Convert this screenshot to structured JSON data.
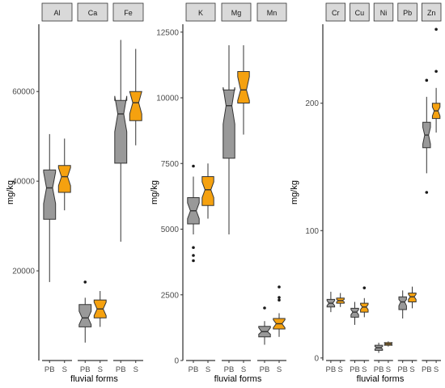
{
  "chart_data": [
    {
      "type": "box",
      "notched": true,
      "ylabel": "mg/kg",
      "xlabel": "fluvial forms",
      "ylim": [
        0,
        75000
      ],
      "yticks": [
        20000,
        40000,
        60000
      ],
      "facets": [
        "Al",
        "Ca",
        "Fe"
      ],
      "groups": [
        "PB",
        "S"
      ],
      "colors": {
        "PB": "#999999",
        "S": "#f5a10f"
      },
      "boxes": [
        {
          "facet": "Al",
          "group": "PB",
          "min": 17500,
          "q1": 31500,
          "median": 38500,
          "q3": 42500,
          "max": 50500,
          "notch": [
            35000,
            42000
          ],
          "outliers": []
        },
        {
          "facet": "Al",
          "group": "S",
          "min": 33500,
          "q1": 37500,
          "median": 41000,
          "q3": 43500,
          "max": 49500,
          "notch": [
            39000,
            43000
          ],
          "outliers": []
        },
        {
          "facet": "Ca",
          "group": "PB",
          "min": 4000,
          "q1": 7500,
          "median": 9500,
          "q3": 12500,
          "max": 14000,
          "notch": [
            8000,
            11000
          ],
          "outliers": [
            17500
          ]
        },
        {
          "facet": "Ca",
          "group": "S",
          "min": 7500,
          "q1": 9500,
          "median": 11500,
          "q3": 13500,
          "max": 15500,
          "notch": [
            10000,
            13000
          ],
          "outliers": []
        },
        {
          "facet": "Fe",
          "group": "PB",
          "min": 26500,
          "q1": 44000,
          "median": 55000,
          "q3": 58000,
          "max": 71500,
          "notch": [
            51000,
            59000
          ],
          "outliers": []
        },
        {
          "facet": "Fe",
          "group": "S",
          "min": 48000,
          "q1": 53500,
          "median": 57500,
          "q3": 60000,
          "max": 69500,
          "notch": [
            55000,
            60000
          ],
          "outliers": []
        }
      ]
    },
    {
      "type": "box",
      "notched": true,
      "ylabel": "mg/kg",
      "xlabel": "fluvial forms",
      "ylim": [
        0,
        12800
      ],
      "yticks": [
        0,
        2500,
        5000,
        7500,
        10000,
        12500
      ],
      "facets": [
        "K",
        "Mg",
        "Mn"
      ],
      "groups": [
        "PB",
        "S"
      ],
      "colors": {
        "PB": "#999999",
        "S": "#f5a10f"
      },
      "boxes": [
        {
          "facet": "K",
          "group": "PB",
          "min": 4800,
          "q1": 5200,
          "median": 5700,
          "q3": 6200,
          "max": 7000,
          "notch": [
            5400,
            6000
          ],
          "outliers": [
            7400,
            4300,
            4000,
            3800
          ]
        },
        {
          "facet": "K",
          "group": "S",
          "min": 5400,
          "q1": 5900,
          "median": 6500,
          "q3": 7000,
          "max": 7500,
          "notch": [
            6200,
            6800
          ],
          "outliers": []
        },
        {
          "facet": "Mg",
          "group": "PB",
          "min": 4800,
          "q1": 7700,
          "median": 9700,
          "q3": 10300,
          "max": 12000,
          "notch": [
            9000,
            10400
          ],
          "outliers": []
        },
        {
          "facet": "Mg",
          "group": "S",
          "min": 8600,
          "q1": 9800,
          "median": 10300,
          "q3": 11000,
          "max": 12000,
          "notch": [
            9900,
            10800
          ],
          "outliers": []
        },
        {
          "facet": "Mn",
          "group": "PB",
          "min": 600,
          "q1": 900,
          "median": 1100,
          "q3": 1300,
          "max": 1500,
          "notch": [
            1000,
            1250
          ],
          "outliers": [
            2000
          ]
        },
        {
          "facet": "Mn",
          "group": "S",
          "min": 900,
          "q1": 1200,
          "median": 1400,
          "q3": 1600,
          "max": 1800,
          "notch": [
            1250,
            1550
          ],
          "outliers": [
            2300,
            2400,
            2800
          ]
        }
      ]
    },
    {
      "type": "box",
      "notched": true,
      "ylabel": "mg/kg",
      "xlabel": "fluvial forms",
      "ylim": [
        -2,
        262
      ],
      "yticks": [
        0,
        100,
        200
      ],
      "facets": [
        "Cr",
        "Cu",
        "Ni",
        "Pb",
        "Zn"
      ],
      "groups": [
        "PB",
        "S"
      ],
      "colors": {
        "PB": "#999999",
        "S": "#f5a10f"
      },
      "boxes": [
        {
          "facet": "Cr",
          "group": "PB",
          "min": 36,
          "q1": 40,
          "median": 43,
          "q3": 46,
          "max": 52,
          "notch": [
            41,
            45
          ],
          "outliers": []
        },
        {
          "facet": "Cr",
          "group": "S",
          "min": 40,
          "q1": 43,
          "median": 45,
          "q3": 47,
          "max": 51,
          "notch": [
            44,
            46
          ],
          "outliers": []
        },
        {
          "facet": "Cu",
          "group": "PB",
          "min": 26,
          "q1": 32,
          "median": 36,
          "q3": 39,
          "max": 44,
          "notch": [
            34,
            38
          ],
          "outliers": []
        },
        {
          "facet": "Cu",
          "group": "S",
          "min": 32,
          "q1": 36,
          "median": 40,
          "q3": 43,
          "max": 47,
          "notch": [
            38,
            42
          ],
          "outliers": [
            55
          ]
        },
        {
          "facet": "Ni",
          "group": "PB",
          "min": 4,
          "q1": 6,
          "median": 8,
          "q3": 10,
          "max": 12,
          "notch": [
            7,
            9
          ],
          "outliers": []
        },
        {
          "facet": "Ni",
          "group": "S",
          "min": 9,
          "q1": 10,
          "median": 11,
          "q3": 12,
          "max": 13,
          "notch": [
            10.5,
            11.5
          ],
          "outliers": []
        },
        {
          "facet": "Pb",
          "group": "PB",
          "min": 31,
          "q1": 38,
          "median": 44,
          "q3": 48,
          "max": 53,
          "notch": [
            41,
            46
          ],
          "outliers": []
        },
        {
          "facet": "Pb",
          "group": "S",
          "min": 39,
          "q1": 44,
          "median": 48,
          "q3": 51,
          "max": 56,
          "notch": [
            46,
            50
          ],
          "outliers": []
        },
        {
          "facet": "Zn",
          "group": "PB",
          "min": 145,
          "q1": 165,
          "median": 175,
          "q3": 185,
          "max": 205,
          "notch": [
            168,
            181
          ],
          "outliers": [
            218,
            130
          ]
        },
        {
          "facet": "Zn",
          "group": "S",
          "min": 177,
          "q1": 188,
          "median": 194,
          "q3": 200,
          "max": 212,
          "notch": [
            190,
            197
          ],
          "outliers": [
            225,
            258
          ]
        }
      ]
    }
  ]
}
